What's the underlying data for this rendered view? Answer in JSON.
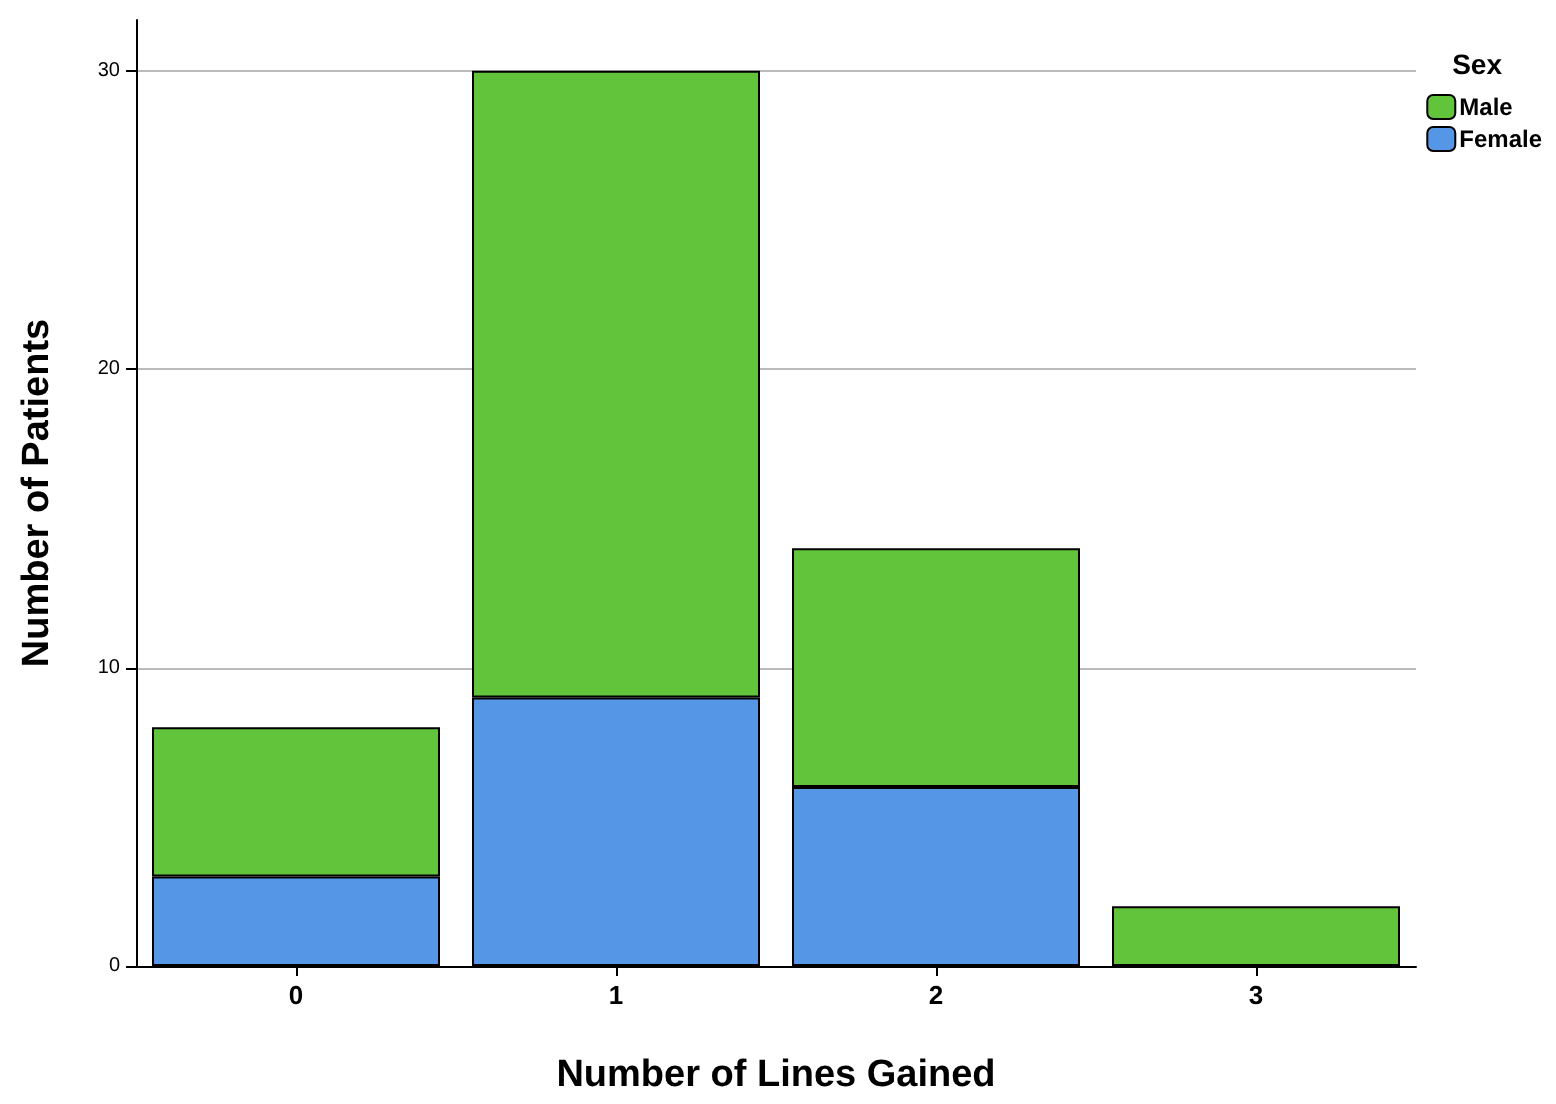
{
  "chart_data": {
    "type": "bar",
    "stacked": true,
    "xlabel": "Number of Lines Gained",
    "ylabel": "Number of Patients",
    "legend_title": "Sex",
    "categories": [
      "0",
      "1",
      "2",
      "3"
    ],
    "series": [
      {
        "name": "Female",
        "color": "#5596e6",
        "values": [
          3,
          9,
          6,
          0
        ]
      },
      {
        "name": "Male",
        "color": "#62c43a",
        "values": [
          5,
          21,
          8,
          2
        ]
      }
    ],
    "ylim": [
      0,
      31.7
    ],
    "yticks": [
      0,
      10,
      20,
      30
    ],
    "grid": "y",
    "legend": "top right"
  }
}
